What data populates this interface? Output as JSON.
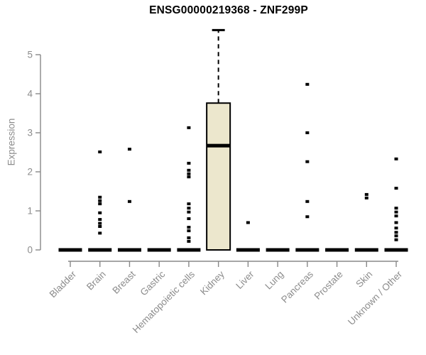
{
  "chart_data": {
    "type": "boxplot",
    "title": "ENSG00000219368 - ZNF299P",
    "xlabel": "",
    "ylabel": "Expression",
    "ylim": [
      0,
      5
    ],
    "yticks": [
      0,
      1,
      2,
      3,
      4,
      5
    ],
    "grid": false,
    "legend": false,
    "categories": [
      "Bladder",
      "Brain",
      "Breast",
      "Gastric",
      "Hematopoietic cells",
      "Kidney",
      "Liver",
      "Lung",
      "Pancreas",
      "Prostate",
      "Skin",
      "Unknown / Other"
    ],
    "series": [
      {
        "name": "Bladder",
        "q1": 0,
        "median": 0,
        "q3": 0,
        "whisker_low": 0,
        "whisker_high": 0,
        "outliers": []
      },
      {
        "name": "Brain",
        "q1": 0,
        "median": 0,
        "q3": 0,
        "whisker_low": 0,
        "whisker_high": 0,
        "outliers": [
          2.51,
          1.35,
          1.26,
          1.18,
          0.95,
          0.78,
          0.68,
          0.6,
          0.43
        ]
      },
      {
        "name": "Breast",
        "q1": 0,
        "median": 0,
        "q3": 0,
        "whisker_low": 0,
        "whisker_high": 0,
        "outliers": [
          2.58,
          1.24
        ]
      },
      {
        "name": "Gastric",
        "q1": 0,
        "median": 0,
        "q3": 0,
        "whisker_low": 0,
        "whisker_high": 0,
        "outliers": []
      },
      {
        "name": "Hematopoietic cells",
        "q1": 0,
        "median": 0,
        "q3": 0,
        "whisker_low": 0,
        "whisker_high": 0,
        "outliers": [
          3.13,
          2.22,
          2.04,
          1.95,
          1.87,
          1.18,
          1.07,
          0.97,
          0.8,
          0.58,
          0.49,
          0.31,
          0.22
        ]
      },
      {
        "name": "Kidney",
        "q1": 0,
        "median": 2.67,
        "q3": 3.76,
        "whisker_low": 0,
        "whisker_high": 5.63,
        "outliers": []
      },
      {
        "name": "Liver",
        "q1": 0,
        "median": 0,
        "q3": 0,
        "whisker_low": 0,
        "whisker_high": 0,
        "outliers": [
          0.7
        ]
      },
      {
        "name": "Lung",
        "q1": 0,
        "median": 0,
        "q3": 0,
        "whisker_low": 0,
        "whisker_high": 0,
        "outliers": []
      },
      {
        "name": "Pancreas",
        "q1": 0,
        "median": 0,
        "q3": 0,
        "whisker_low": 0,
        "whisker_high": 0,
        "outliers": [
          4.24,
          3.0,
          2.26,
          1.24,
          0.85
        ]
      },
      {
        "name": "Prostate",
        "q1": 0,
        "median": 0,
        "q3": 0,
        "whisker_low": 0,
        "whisker_high": 0,
        "outliers": []
      },
      {
        "name": "Skin",
        "q1": 0,
        "median": 0,
        "q3": 0,
        "whisker_low": 0,
        "whisker_high": 0,
        "outliers": [
          1.42,
          1.33
        ]
      },
      {
        "name": "Unknown / Other",
        "q1": 0,
        "median": 0,
        "q3": 0,
        "whisker_low": 0,
        "whisker_high": 0,
        "outliers": [
          2.33,
          1.58,
          1.07,
          0.97,
          0.87,
          0.7,
          0.56,
          0.45,
          0.36,
          0.26
        ]
      }
    ]
  },
  "colors": {
    "box_fill": "#ECE7CD",
    "box_stroke": "#000000",
    "flat_bar": "#000000",
    "median": "#000000",
    "whisker": "#000000",
    "outlier": "#000000",
    "axis": "#888888",
    "tick_label": "#8C8C8C",
    "title": "#000000",
    "background": "#FFFFFF"
  }
}
